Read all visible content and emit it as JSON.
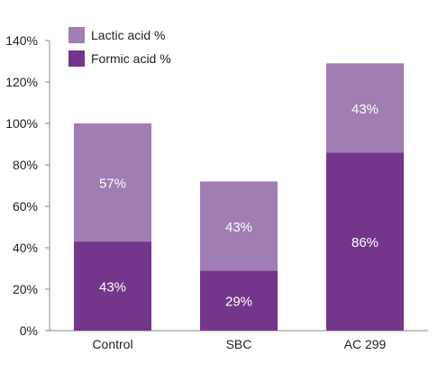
{
  "chart_data": {
    "type": "bar",
    "stacked": true,
    "categories": [
      "Control",
      "SBC",
      "AC 299"
    ],
    "series": [
      {
        "name": "Formic acid %",
        "values": [
          43,
          29,
          86
        ],
        "labels": [
          "43%",
          "29%",
          "86%"
        ],
        "color": "#74368a"
      },
      {
        "name": "Lactic acid %",
        "values": [
          57,
          43,
          43
        ],
        "labels": [
          "57%",
          "43%",
          "43%"
        ],
        "color": "#a07db2"
      }
    ],
    "ylim": [
      0,
      140
    ],
    "yticks": [
      "0%",
      "20%",
      "40%",
      "60%",
      "80%",
      "100%",
      "120%",
      "140%"
    ],
    "legend": {
      "placement": "top-left",
      "order": [
        "Lactic acid %",
        "Formic acid %"
      ]
    },
    "grid": false
  }
}
